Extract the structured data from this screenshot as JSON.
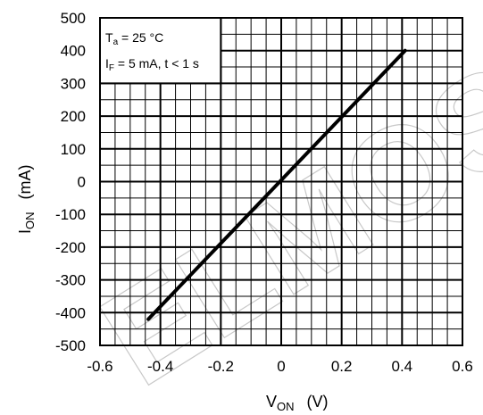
{
  "chart_data": {
    "type": "line",
    "xlim": [
      -0.6,
      0.6
    ],
    "ylim": [
      -500,
      500
    ],
    "x_ticks": [
      "-0.6",
      "-0.4",
      "-0.2",
      "0",
      "0.2",
      "0.4",
      "0.6"
    ],
    "y_ticks": [
      "500",
      "400",
      "300",
      "200",
      "100",
      "0",
      "-100",
      "-200",
      "-300",
      "-400",
      "-500"
    ],
    "x_tick_values": [
      -0.6,
      -0.4,
      -0.2,
      0,
      0.2,
      0.4,
      0.6
    ],
    "y_tick_values": [
      500,
      400,
      300,
      200,
      100,
      0,
      -100,
      -200,
      -300,
      -400,
      -500
    ],
    "xlabel": {
      "main": "V",
      "sub": "ON",
      "unit": "(V)"
    },
    "ylabel": {
      "main": "I",
      "sub": "ON",
      "unit": "(mA)"
    },
    "grid": true,
    "minor_divisions_x": 4,
    "minor_divisions_y": 2,
    "annotations": [
      {
        "prefix": "T",
        "sub": "a",
        "rest": " = 25 °C"
      },
      {
        "prefix": "I",
        "sub": "F",
        "rest": " = 5 mA, t < 1 s"
      }
    ],
    "series": [
      {
        "x": [
          -0.44,
          0.41
        ],
        "y": [
          -420,
          400
        ],
        "color": "#000000"
      }
    ],
    "watermark_text": "ELMOS"
  }
}
